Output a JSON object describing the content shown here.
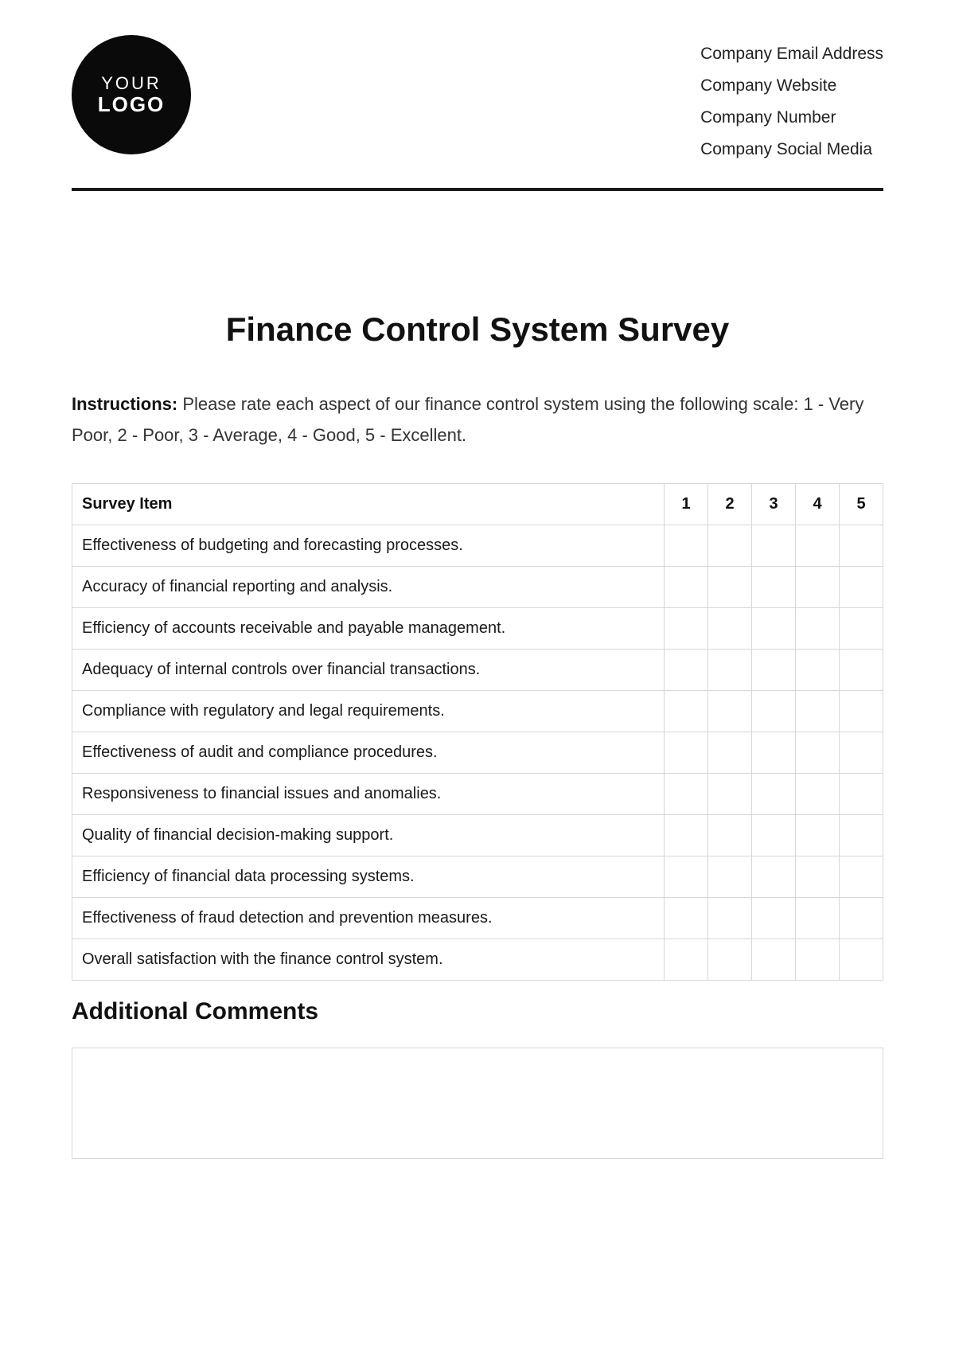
{
  "logo": {
    "line1": "YOUR",
    "line2": "LOGO"
  },
  "company_info": [
    "Company Email Address",
    "Company Website",
    "Company Number",
    "Company Social Media"
  ],
  "title": "Finance Control System Survey",
  "instructions": {
    "label": "Instructions:",
    "text": " Please rate each aspect of our finance control system using the following scale: 1 - Very Poor, 2 - Poor, 3 - Average, 4 - Good, 5 - Excellent."
  },
  "table": {
    "header_item": "Survey Item",
    "rating_headers": [
      "1",
      "2",
      "3",
      "4",
      "5"
    ],
    "rows": [
      "Effectiveness of budgeting and forecasting processes.",
      "Accuracy of financial reporting and analysis.",
      "Efficiency of accounts receivable and payable management.",
      "Adequacy of internal controls over financial transactions.",
      "Compliance with regulatory and legal requirements.",
      "Effectiveness of audit and compliance procedures.",
      "Responsiveness to financial issues and anomalies.",
      "Quality of financial decision-making support.",
      "Efficiency of financial data processing systems.",
      "Effectiveness of fraud detection and prevention measures.",
      "Overall satisfaction with the finance control system."
    ]
  },
  "additional_comments_heading": "Additional Comments",
  "colors": {
    "text": "#1a1a1a",
    "border": "#d7d7d7",
    "rule": "#1a1a1a",
    "background": "#ffffff"
  }
}
